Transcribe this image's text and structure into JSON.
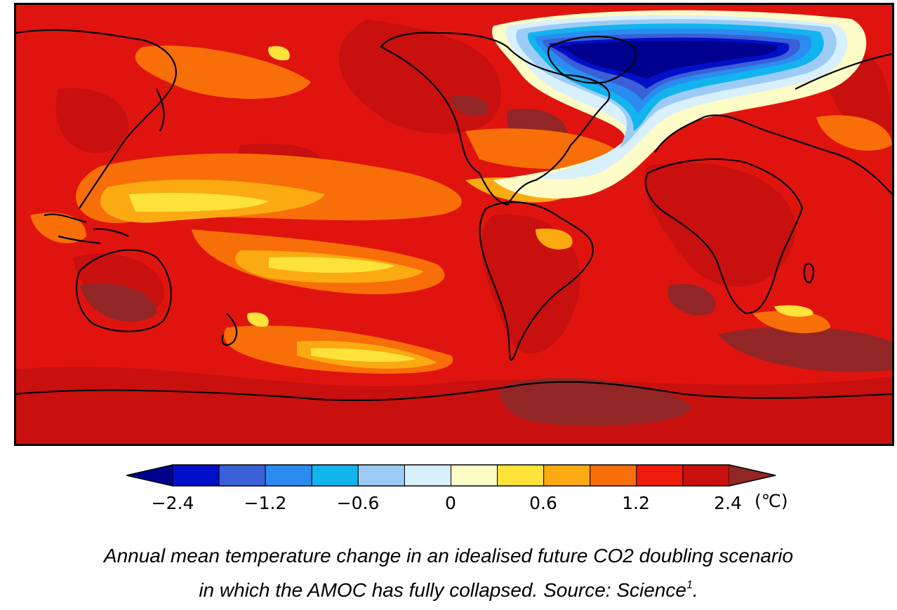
{
  "colorbar": {
    "tick_labels": [
      "−2.4",
      "−1.2",
      "−0.6",
      "0",
      "0.6",
      "1.2",
      "2.4"
    ],
    "unit": "(℃)",
    "colors": [
      "#00008f",
      "#0010c8",
      "#3a5fd6",
      "#2a8cf0",
      "#12b4ee",
      "#9cccf5",
      "#d8effc",
      "#fdfbc6",
      "#fde23a",
      "#fbaa12",
      "#f86e08",
      "#ee1c0c",
      "#c8100e",
      "#922626"
    ]
  },
  "caption": {
    "line1": "Annual mean temperature change in an idealised future CO2 doubling scenario",
    "line2_main": "in which the AMOC has fully collapsed. Source: Science",
    "line2_sup": "1",
    "line2_end": "."
  },
  "map": {
    "background_color": "#e0140f",
    "cold_anomaly_region": "North Atlantic"
  }
}
